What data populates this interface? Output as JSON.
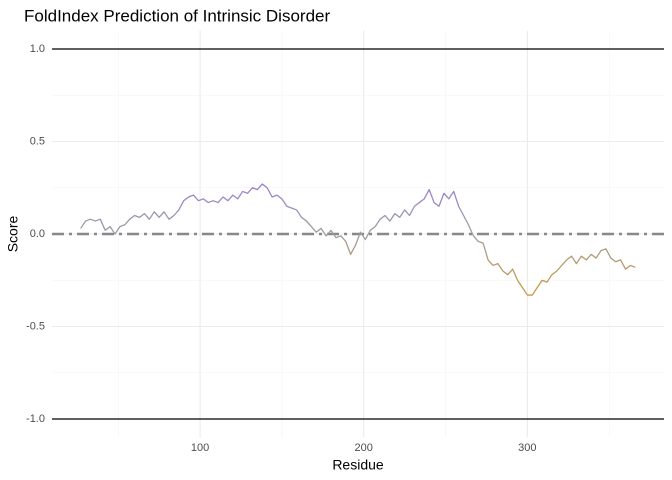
{
  "chart_data": {
    "type": "line",
    "title": "FoldIndex Prediction of Intrinsic Disorder",
    "x_label": "Residue",
    "y_label": "Score",
    "x": [
      27,
      30,
      33,
      36,
      39,
      42,
      45,
      48,
      51,
      54,
      57,
      60,
      63,
      66,
      69,
      72,
      75,
      78,
      81,
      84,
      87,
      90,
      93,
      96,
      99,
      102,
      105,
      108,
      111,
      114,
      117,
      120,
      123,
      126,
      129,
      132,
      135,
      138,
      141,
      144,
      147,
      150,
      153,
      156,
      159,
      162,
      165,
      168,
      171,
      174,
      177,
      180,
      183,
      186,
      189,
      192,
      195,
      198,
      201,
      204,
      207,
      210,
      213,
      216,
      219,
      222,
      225,
      228,
      231,
      234,
      237,
      240,
      243,
      246,
      249,
      252,
      255,
      258,
      261,
      264,
      267,
      270,
      273,
      276,
      279,
      282,
      285,
      288,
      291,
      294,
      297,
      300,
      303,
      306,
      309,
      312,
      315,
      318,
      321,
      324,
      327,
      330,
      333,
      336,
      339,
      342,
      345,
      348,
      351,
      354,
      357,
      360,
      363,
      366
    ],
    "values": [
      0.03,
      0.07,
      0.08,
      0.07,
      0.08,
      0.02,
      0.04,
      0.0,
      0.04,
      0.05,
      0.08,
      0.1,
      0.09,
      0.11,
      0.08,
      0.12,
      0.09,
      0.12,
      0.08,
      0.1,
      0.13,
      0.18,
      0.2,
      0.21,
      0.18,
      0.19,
      0.17,
      0.18,
      0.17,
      0.2,
      0.18,
      0.21,
      0.19,
      0.23,
      0.22,
      0.25,
      0.24,
      0.27,
      0.25,
      0.2,
      0.21,
      0.19,
      0.15,
      0.14,
      0.13,
      0.09,
      0.07,
      0.04,
      0.01,
      0.03,
      -0.01,
      0.02,
      -0.02,
      -0.01,
      -0.04,
      -0.11,
      -0.06,
      0.01,
      -0.03,
      0.02,
      0.04,
      0.08,
      0.1,
      0.07,
      0.11,
      0.09,
      0.13,
      0.1,
      0.15,
      0.17,
      0.19,
      0.24,
      0.17,
      0.15,
      0.22,
      0.19,
      0.23,
      0.15,
      0.1,
      0.05,
      -0.01,
      -0.04,
      -0.05,
      -0.14,
      -0.17,
      -0.16,
      -0.2,
      -0.22,
      -0.19,
      -0.25,
      -0.29,
      -0.33,
      -0.33,
      -0.29,
      -0.25,
      -0.26,
      -0.22,
      -0.2,
      -0.17,
      -0.14,
      -0.12,
      -0.16,
      -0.12,
      -0.14,
      -0.11,
      -0.13,
      -0.09,
      -0.08,
      -0.13,
      -0.15,
      -0.14,
      -0.19,
      -0.17,
      -0.18
    ],
    "color_scale": [
      {
        "value": -0.3,
        "color": "#c99a45"
      },
      {
        "value": 0,
        "color": "#9e9e9e"
      },
      {
        "value": 0.25,
        "color": "#9b80d2"
      }
    ],
    "xlim": [
      9.5,
      383.5
    ],
    "ylim": [
      -1.1,
      1.1
    ],
    "xticks": [
      100,
      200,
      300
    ],
    "yticks": [
      {
        "value": 1,
        "label": "1.0"
      },
      {
        "value": 0.5,
        "label": "0.5"
      },
      {
        "value": 0,
        "label": "0.0"
      },
      {
        "value": -0.5,
        "label": "-0.5"
      },
      {
        "value": -1,
        "label": "-1.0"
      }
    ],
    "xminor": [
      50,
      150,
      250,
      350
    ],
    "yminor": [
      -0.75,
      -0.25,
      0.25,
      0.75
    ],
    "grid": true,
    "hlines": [
      {
        "value": 1,
        "color": "#000000",
        "dash": "solid"
      },
      {
        "value": -1,
        "color": "#000000",
        "dash": "solid"
      },
      {
        "value": 0,
        "color": "#888888",
        "dash": "dotdash"
      }
    ]
  }
}
